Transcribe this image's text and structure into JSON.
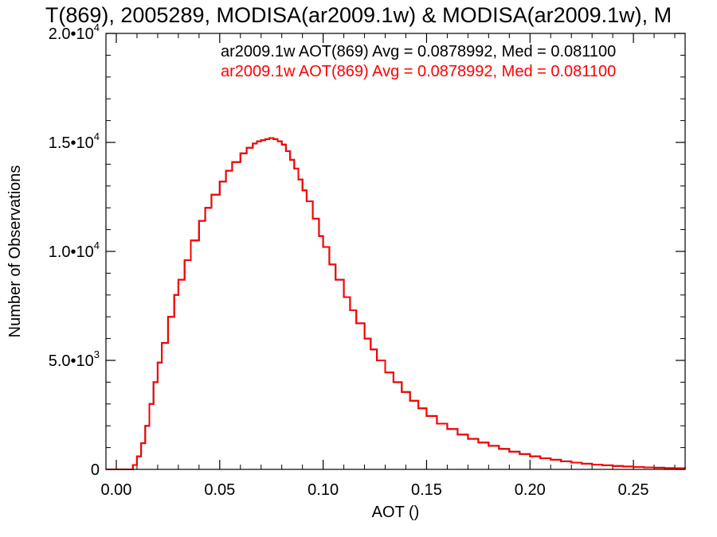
{
  "chart_data": {
    "type": "line",
    "title": "T(869), 2005289, MODISA(ar2009.1w) & MODISA(ar2009.1w), M",
    "xlabel": "AOT ()",
    "ylabel": "Number of Observations",
    "xlim": [
      -0.005,
      0.275
    ],
    "ylim": [
      0,
      20000
    ],
    "x_ticks": [
      {
        "value": 0.0,
        "label": "0.00"
      },
      {
        "value": 0.05,
        "label": "0.05"
      },
      {
        "value": 0.1,
        "label": "0.10"
      },
      {
        "value": 0.15,
        "label": "0.15"
      },
      {
        "value": 0.2,
        "label": "0.20"
      },
      {
        "value": 0.25,
        "label": "0.25"
      }
    ],
    "y_ticks": [
      {
        "value": 0,
        "mant": "0",
        "exp": ""
      },
      {
        "value": 5000,
        "mant": "5.0•10",
        "exp": "3"
      },
      {
        "value": 10000,
        "mant": "1.0•10",
        "exp": "4"
      },
      {
        "value": 15000,
        "mant": "1.5•10",
        "exp": "4"
      },
      {
        "value": 20000,
        "mant": "2.0•10",
        "exp": "4"
      }
    ],
    "grid": false,
    "legend_position": "top-right",
    "series": [
      {
        "name": "ar2009.1w AOT(869) Avg = 0.0878992, Med = 0.081100",
        "color": "#000000",
        "x": [
          -0.005,
          0.0,
          0.005,
          0.008,
          0.01,
          0.012,
          0.014,
          0.016,
          0.018,
          0.02,
          0.022,
          0.025,
          0.028,
          0.03,
          0.033,
          0.036,
          0.04,
          0.043,
          0.046,
          0.05,
          0.053,
          0.056,
          0.06,
          0.063,
          0.066,
          0.068,
          0.07,
          0.072,
          0.074,
          0.076,
          0.078,
          0.08,
          0.082,
          0.084,
          0.086,
          0.088,
          0.09,
          0.092,
          0.095,
          0.098,
          0.1,
          0.103,
          0.106,
          0.11,
          0.113,
          0.116,
          0.12,
          0.123,
          0.126,
          0.13,
          0.134,
          0.138,
          0.142,
          0.146,
          0.15,
          0.155,
          0.16,
          0.165,
          0.17,
          0.175,
          0.18,
          0.185,
          0.19,
          0.195,
          0.2,
          0.205,
          0.21,
          0.215,
          0.22,
          0.225,
          0.23,
          0.235,
          0.24,
          0.245,
          0.25,
          0.255,
          0.26,
          0.265,
          0.27,
          0.275
        ],
        "y": [
          0,
          0,
          0,
          200,
          600,
          1200,
          2000,
          3000,
          4000,
          4900,
          5800,
          7000,
          8000,
          8700,
          9600,
          10500,
          11400,
          12000,
          12600,
          13200,
          13700,
          14100,
          14500,
          14750,
          14950,
          15050,
          15100,
          15150,
          15200,
          15150,
          15050,
          14900,
          14600,
          14200,
          13800,
          13300,
          12800,
          12300,
          11500,
          10700,
          10200,
          9400,
          8700,
          7900,
          7300,
          6700,
          6000,
          5500,
          5000,
          4450,
          4000,
          3550,
          3150,
          2800,
          2450,
          2100,
          1850,
          1600,
          1400,
          1230,
          1080,
          940,
          810,
          700,
          600,
          510,
          440,
          370,
          310,
          260,
          220,
          185,
          155,
          130,
          110,
          90,
          75,
          60,
          50,
          40
        ]
      },
      {
        "name": "ar2009.1w AOT(869) Avg = 0.0878992, Med = 0.081100",
        "color": "#ff0000",
        "x": [
          -0.005,
          0.0,
          0.005,
          0.008,
          0.01,
          0.012,
          0.014,
          0.016,
          0.018,
          0.02,
          0.022,
          0.025,
          0.028,
          0.03,
          0.033,
          0.036,
          0.04,
          0.043,
          0.046,
          0.05,
          0.053,
          0.056,
          0.06,
          0.063,
          0.066,
          0.068,
          0.07,
          0.072,
          0.074,
          0.076,
          0.078,
          0.08,
          0.082,
          0.084,
          0.086,
          0.088,
          0.09,
          0.092,
          0.095,
          0.098,
          0.1,
          0.103,
          0.106,
          0.11,
          0.113,
          0.116,
          0.12,
          0.123,
          0.126,
          0.13,
          0.134,
          0.138,
          0.142,
          0.146,
          0.15,
          0.155,
          0.16,
          0.165,
          0.17,
          0.175,
          0.18,
          0.185,
          0.19,
          0.195,
          0.2,
          0.205,
          0.21,
          0.215,
          0.22,
          0.225,
          0.23,
          0.235,
          0.24,
          0.245,
          0.25,
          0.255,
          0.26,
          0.265,
          0.27,
          0.275
        ],
        "y": [
          0,
          0,
          0,
          200,
          600,
          1200,
          2000,
          3000,
          4000,
          4900,
          5800,
          7000,
          8000,
          8700,
          9600,
          10500,
          11400,
          12000,
          12600,
          13200,
          13700,
          14100,
          14500,
          14750,
          14950,
          15050,
          15100,
          15150,
          15200,
          15150,
          15050,
          14900,
          14600,
          14200,
          13800,
          13300,
          12800,
          12300,
          11500,
          10700,
          10200,
          9400,
          8700,
          7900,
          7300,
          6700,
          6000,
          5500,
          5000,
          4450,
          4000,
          3550,
          3150,
          2800,
          2450,
          2100,
          1850,
          1600,
          1400,
          1230,
          1080,
          940,
          810,
          700,
          600,
          510,
          440,
          370,
          310,
          260,
          220,
          185,
          155,
          130,
          110,
          90,
          75,
          60,
          50,
          40
        ]
      }
    ]
  }
}
